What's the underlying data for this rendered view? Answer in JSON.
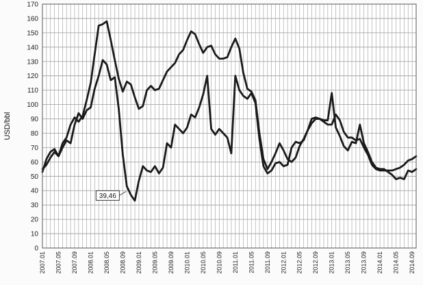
{
  "chart_data": {
    "type": "line",
    "title": "",
    "xlabel": "",
    "ylabel": "USD/bbl",
    "ylim": [
      0,
      170
    ],
    "yticks": [
      0,
      10,
      20,
      30,
      40,
      50,
      60,
      70,
      80,
      90,
      100,
      110,
      120,
      130,
      140,
      150,
      160,
      170
    ],
    "grid": true,
    "x_tick_labels": [
      "2007.01",
      "2007.05",
      "2007.09",
      "2008.01",
      "2008.05",
      "2008.09",
      "2009.01",
      "2009.05",
      "2009.09",
      "2010.01",
      "2010.05",
      "2010.09",
      "2011.01",
      "2011.05",
      "2011.09",
      "2012.01",
      "2012.05",
      "2012.09",
      "2013.01",
      "2013.05",
      "2013.09",
      "2014.01",
      "2014.05",
      "2014.09"
    ],
    "series": [
      {
        "color": "#1a1a1a",
        "values": [
          55,
          58,
          63,
          67,
          64,
          73,
          77,
          86,
          91,
          88,
          92,
          103,
          115,
          135,
          155,
          156,
          158,
          145,
          131,
          118,
          109,
          116,
          114,
          105,
          97,
          99,
          110,
          113,
          110,
          111,
          117,
          123,
          126,
          129,
          135,
          138,
          145,
          151,
          149,
          142,
          136,
          140,
          141,
          135,
          132,
          132,
          133,
          140,
          146,
          139,
          122,
          111,
          109,
          103,
          80,
          62,
          55,
          60,
          66,
          73,
          68,
          62,
          60,
          63,
          71,
          76,
          82,
          90,
          91,
          90,
          88,
          86,
          86,
          93,
          89,
          81,
          77,
          77,
          75,
          76,
          70,
          65,
          58,
          55,
          54,
          54,
          54,
          54,
          55,
          56,
          58,
          61,
          62,
          64
        ]
      },
      {
        "color": "#1a1a1a",
        "values": [
          53,
          62,
          67,
          69,
          64,
          70,
          75,
          73,
          86,
          94,
          90,
          96,
          98,
          111,
          120,
          131,
          128,
          117,
          119,
          97,
          65,
          43,
          37,
          33,
          47,
          57,
          54,
          53,
          57,
          52,
          56,
          73,
          70,
          86,
          83,
          80,
          84,
          93,
          91,
          98,
          107,
          120,
          83,
          79,
          83,
          80,
          77,
          66,
          120,
          110,
          106,
          104,
          108,
          101,
          76,
          57,
          52,
          54,
          59,
          60,
          57,
          58,
          70,
          74,
          73,
          75,
          82,
          87,
          90,
          90,
          89,
          89,
          108,
          84,
          78,
          71,
          68,
          74,
          73,
          86,
          73,
          67,
          60,
          56,
          55,
          55,
          53,
          51,
          48,
          49,
          48,
          54,
          53,
          55
        ]
      }
    ],
    "annotations": [
      {
        "text": "39,46",
        "x_index": 21,
        "y": 39.46
      }
    ]
  }
}
